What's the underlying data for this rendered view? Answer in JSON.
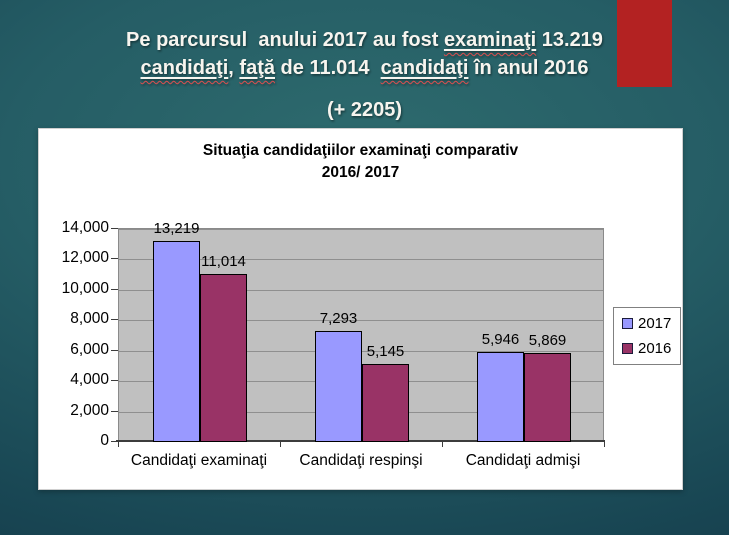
{
  "slide": {
    "heading": {
      "line1_segments": [
        {
          "text": "Pe parcursul  anului 2017 au fost ",
          "u": false
        },
        {
          "text": "examinaţi",
          "u": true
        },
        {
          "text": " 13.219",
          "u": false
        }
      ],
      "line2_segments": [
        {
          "text": "candidaţi",
          "u": true
        },
        {
          "text": ", ",
          "u": false
        },
        {
          "text": "faţă",
          "u": true
        },
        {
          "text": " de 11.014  ",
          "u": false
        },
        {
          "text": "candidaţi",
          "u": true
        },
        {
          "text": " în anul 2016",
          "u": false
        }
      ],
      "subtitle": "(+ 2205)",
      "text_color": "#f7f5ef"
    },
    "accent_block_color": "#b32222"
  },
  "chart_data": {
    "type": "bar",
    "title_line1": "Situaţia candidaţiilor examinaţi comparativ",
    "title_line2": "2016/ 2017",
    "categories": [
      "Candidaţi examinaţi",
      "Candidaţi respinşi",
      "Candidaţi admişi"
    ],
    "series": [
      {
        "name": "2017",
        "color": "#9999ff",
        "values": [
          13219,
          7293,
          5946
        ],
        "value_labels": [
          "13,219",
          "7,293",
          "5,946"
        ]
      },
      {
        "name": "2016",
        "color": "#993366",
        "values": [
          11014,
          5145,
          5869
        ],
        "value_labels": [
          "11,014",
          "5,145",
          "5,869"
        ]
      }
    ],
    "ylim": [
      0,
      14000
    ],
    "ytick_interval": 2000,
    "ytick_labels": [
      "0",
      "2,000",
      "4,000",
      "6,000",
      "8,000",
      "10,000",
      "12,000",
      "14,000"
    ],
    "grid": true,
    "legend_position": "right",
    "plot_background": "#c0c0c0",
    "gridline_color": "#8f8f8f"
  }
}
